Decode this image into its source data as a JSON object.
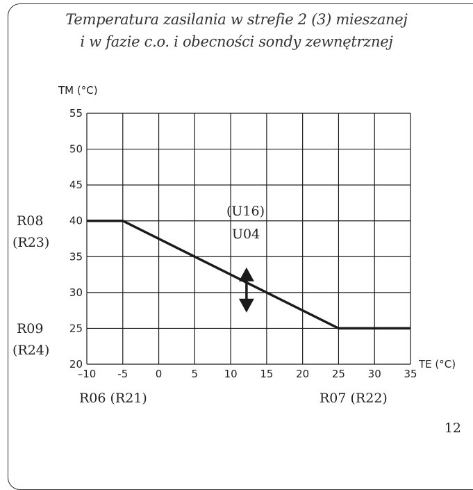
{
  "title_line1": "Temperatura zasilania w strefie 2 (3) mieszanej",
  "title_line2": "i w fazie c.o. i obecności sondy zewnętrznej",
  "page_number": "12",
  "chart_data": {
    "type": "line",
    "ylabel": "TM (°C)",
    "xlabel": "TE (°C)",
    "xlim": [
      -10,
      35
    ],
    "ylim": [
      20,
      55
    ],
    "x_ticks": [
      -10,
      -5,
      0,
      5,
      10,
      15,
      20,
      25,
      30,
      35
    ],
    "y_ticks": [
      20,
      25,
      30,
      35,
      40,
      45,
      50,
      55
    ],
    "x_tick_labels": [
      "–10",
      "-5",
      "0",
      "5",
      "10",
      "15",
      "20",
      "25",
      "30",
      "35"
    ],
    "grid": true,
    "series": [
      {
        "x": [
          -10,
          -5,
          25,
          35
        ],
        "y": [
          40,
          40,
          25,
          25
        ]
      }
    ],
    "annotations": {
      "r08": "R08",
      "r23": "(R23)",
      "r09": "R09",
      "r24": "(R24)",
      "r06_r21": "R06 (R21)",
      "r07_r22": "R07 (R22)",
      "u16": "(U16)",
      "u04": "U04"
    },
    "arrow": {
      "x": 12.2,
      "y_from": 33.5,
      "y_to": 27.2
    },
    "colors": {
      "line": "#1a1a1a",
      "grid": "#1a1a1a"
    }
  }
}
